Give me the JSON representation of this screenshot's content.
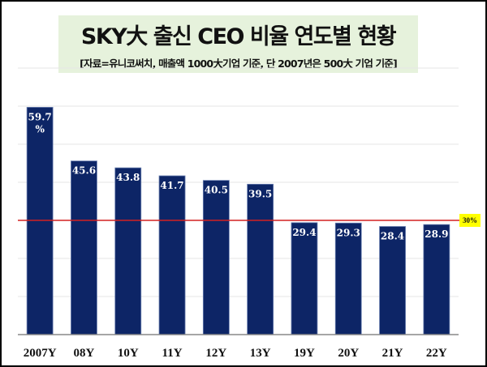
{
  "chart_data": {
    "type": "bar",
    "title": "SKY大 출신 CEO 비율 연도별 현황",
    "subtitle": "[자료=유니코써치, 매출액 1000大기업  기준, 단 2007년은 500大 기업 기준]",
    "categories": [
      "2007Y",
      "08Y",
      "10Y",
      "11Y",
      "12Y",
      "13Y",
      "19Y",
      "20Y",
      "21Y",
      "22Y"
    ],
    "values": [
      59.7,
      45.6,
      43.8,
      41.7,
      40.5,
      39.5,
      29.4,
      29.3,
      28.4,
      28.9
    ],
    "value_labels": [
      "59.7\n%",
      "45.6",
      "43.8",
      "41.7",
      "40.5",
      "39.5",
      "29.4",
      "29.3",
      "28.4",
      "28.9"
    ],
    "ylim": [
      0,
      70
    ],
    "grid": true,
    "bar_color": "#0d2566",
    "reference_line": {
      "value": 30,
      "label": "30%",
      "color": "#d42020",
      "label_bg": "#ffff00"
    },
    "xlabel": "",
    "ylabel": ""
  }
}
